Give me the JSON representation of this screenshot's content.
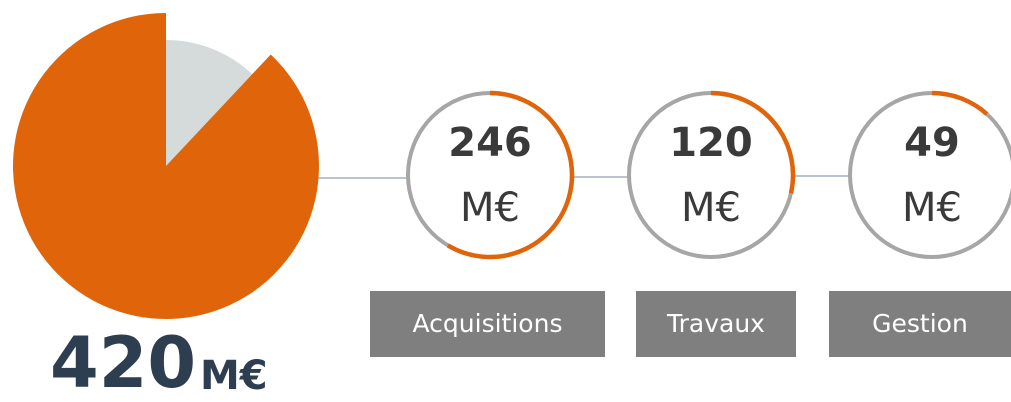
{
  "chart_data": {
    "type": "pie",
    "values": [
      88,
      12
    ],
    "colors": [
      "#e0640a",
      "#d5dbdb"
    ]
  },
  "total": {
    "value": "420",
    "unit": "M€"
  },
  "items": [
    {
      "value": "246",
      "unit": "M€",
      "label": "Acquisitions"
    },
    {
      "value": "120",
      "unit": "M€",
      "label": "Travaux"
    },
    {
      "value": "49",
      "unit": "M€",
      "label": "Gestion"
    }
  ],
  "ring_colors": {
    "fill": "#e0640a",
    "track": "#a6a6a6"
  }
}
